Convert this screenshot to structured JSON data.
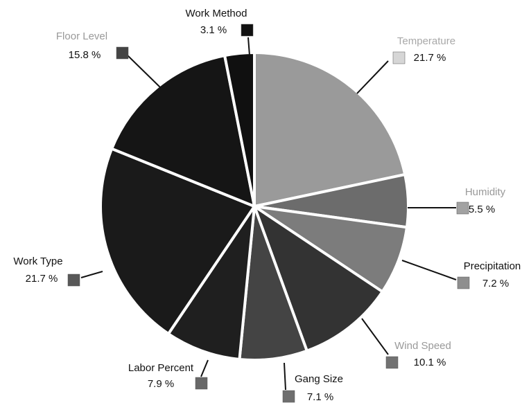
{
  "chart_data": {
    "type": "pie",
    "categories": [
      "Temperature",
      "Humidity",
      "Precipitation",
      "Wind Speed",
      "Gang Size",
      "Labor Percent",
      "Work Type",
      "Floor Level",
      "Work Method"
    ],
    "values": [
      21.7,
      5.5,
      7.2,
      10.1,
      7.1,
      7.9,
      21.7,
      15.8,
      3.1
    ],
    "value_labels": [
      "21.7 %",
      "5.5 %",
      "7.2 %",
      "10.1 %",
      "7.1 %",
      "7.9 %",
      "21.7 %",
      "15.8 %",
      "3.1 %"
    ],
    "colors": [
      "#9a9a9a",
      "#6c6c6c",
      "#7c7c7c",
      "#333333",
      "#444444",
      "#1f1f1f",
      "#1a1a1a",
      "#151515",
      "#101010"
    ],
    "legend_colors": [
      "#d6d6d6",
      "#a2a2a2",
      "#8e8e8e",
      "#727272",
      "#6e6e6e",
      "#686868",
      "#585858",
      "#444444",
      "#111111"
    ],
    "label_colors": [
      "#a8a8a8",
      "#999999",
      "#111111",
      "#999999",
      "#111111",
      "#111111",
      "#111111",
      "#999999",
      "#111111"
    ]
  }
}
